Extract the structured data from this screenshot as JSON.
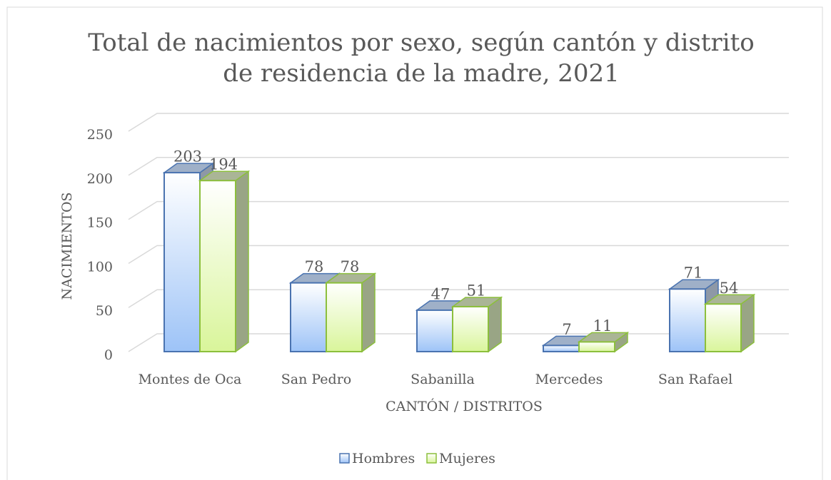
{
  "chart_data": {
    "type": "bar3d",
    "title": [
      "Total de nacimientos por sexo, según cantón y distrito",
      "de residencia de la madre, 2021"
    ],
    "x_label": "CANTÓN / DISTRITOS",
    "y_label": "NACIMIENTOS",
    "categories": [
      "Montes de Oca",
      "San Pedro",
      "Sabanilla",
      "Mercedes",
      "San Rafael"
    ],
    "series": [
      {
        "name": "Hombres",
        "color": "#9dc3f7",
        "values": [
          203,
          78,
          47,
          7,
          71
        ]
      },
      {
        "name": "Mujeres",
        "color": "#d9f59a",
        "values": [
          194,
          78,
          51,
          11,
          54
        ]
      }
    ],
    "ylim": [
      0,
      250
    ],
    "yticks": [
      0,
      50,
      100,
      150,
      200,
      250
    ],
    "grid": true,
    "legend": "bottom"
  }
}
